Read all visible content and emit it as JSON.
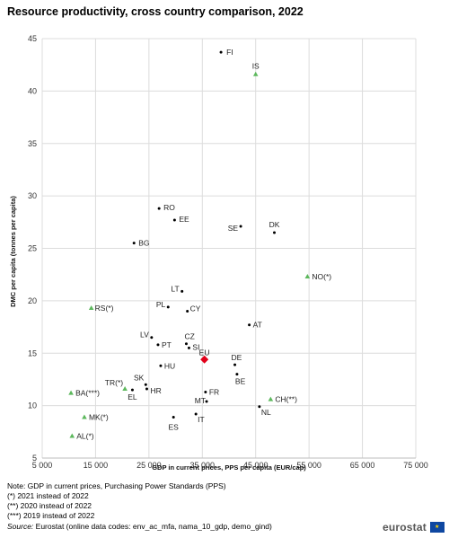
{
  "chart_data": {
    "type": "scatter",
    "title": "Resource productivity, cross country comparison, 2022",
    "xlabel": "GDP in current prices, PPS per capita (EUR/cap)",
    "ylabel": "DMC per capita (tonnes per capita)",
    "xlim": [
      5000,
      75000
    ],
    "ylim": [
      5,
      45
    ],
    "xticks": [
      5000,
      15000,
      25000,
      35000,
      45000,
      55000,
      65000,
      75000
    ],
    "xtick_labels": [
      "5 000",
      "15 000",
      "25 000",
      "35 000",
      "45 000",
      "55 000",
      "65 000",
      "75 000"
    ],
    "yticks": [
      5,
      10,
      15,
      20,
      25,
      30,
      35,
      40,
      45
    ],
    "grid": true,
    "colors": {
      "member": "#000000",
      "other": "#5cb85c",
      "eu": "#e2001a"
    },
    "points": [
      {
        "label": "FI",
        "x": 38500,
        "y": 43.7,
        "group": "member"
      },
      {
        "label": "IS",
        "x": 45000,
        "y": 41.6,
        "group": "other"
      },
      {
        "label": "RO",
        "x": 26900,
        "y": 28.8,
        "group": "member"
      },
      {
        "label": "EE",
        "x": 29800,
        "y": 27.7,
        "group": "member"
      },
      {
        "label": "SE",
        "x": 42200,
        "y": 27.1,
        "group": "member"
      },
      {
        "label": "DK",
        "x": 48500,
        "y": 26.5,
        "group": "member"
      },
      {
        "label": "BG",
        "x": 22200,
        "y": 25.5,
        "group": "member"
      },
      {
        "label": "NO(*)",
        "x": 54700,
        "y": 22.3,
        "group": "other"
      },
      {
        "label": "LT",
        "x": 31200,
        "y": 20.9,
        "group": "member"
      },
      {
        "label": "RS(*)",
        "x": 14200,
        "y": 19.3,
        "group": "other"
      },
      {
        "label": "PL",
        "x": 28600,
        "y": 19.4,
        "group": "member"
      },
      {
        "label": "CY",
        "x": 32200,
        "y": 19.0,
        "group": "member"
      },
      {
        "label": "AT",
        "x": 43800,
        "y": 17.7,
        "group": "member"
      },
      {
        "label": "LV",
        "x": 25500,
        "y": 16.5,
        "group": "member"
      },
      {
        "label": "CZ",
        "x": 32000,
        "y": 15.9,
        "group": "member"
      },
      {
        "label": "PT",
        "x": 26700,
        "y": 15.8,
        "group": "member"
      },
      {
        "label": "SI",
        "x": 32500,
        "y": 15.5,
        "group": "member"
      },
      {
        "label": "EU",
        "x": 35400,
        "y": 14.4,
        "group": "eu"
      },
      {
        "label": "DE",
        "x": 41100,
        "y": 13.9,
        "group": "member"
      },
      {
        "label": "HU",
        "x": 27200,
        "y": 13.8,
        "group": "member"
      },
      {
        "label": "BE",
        "x": 41500,
        "y": 13.0,
        "group": "member"
      },
      {
        "label": "SK",
        "x": 24400,
        "y": 12.0,
        "group": "member"
      },
      {
        "label": "TR(*)",
        "x": 20500,
        "y": 11.6,
        "group": "other"
      },
      {
        "label": "HR",
        "x": 24600,
        "y": 11.6,
        "group": "member"
      },
      {
        "label": "FR",
        "x": 35600,
        "y": 11.3,
        "group": "member"
      },
      {
        "label": "BA(***)",
        "x": 10400,
        "y": 11.2,
        "group": "other"
      },
      {
        "label": "EL",
        "x": 21900,
        "y": 11.5,
        "group": "member"
      },
      {
        "label": "CH(**)",
        "x": 47800,
        "y": 10.6,
        "group": "other"
      },
      {
        "label": "MT",
        "x": 35800,
        "y": 10.4,
        "group": "member"
      },
      {
        "label": "NL",
        "x": 45700,
        "y": 9.9,
        "group": "member"
      },
      {
        "label": "IT",
        "x": 33800,
        "y": 9.2,
        "group": "member"
      },
      {
        "label": "MK(*)",
        "x": 12900,
        "y": 8.9,
        "group": "other"
      },
      {
        "label": "ES",
        "x": 29600,
        "y": 8.9,
        "group": "member"
      },
      {
        "label": "AL(*)",
        "x": 10600,
        "y": 7.1,
        "group": "other"
      }
    ]
  },
  "notes": [
    "Note: GDP in current prices, Purchasing Power Standards (PPS)",
    "(*) 2021 instead of 2022",
    "(**) 2020 instead of 2022",
    "(***) 2019 instead of 2022"
  ],
  "source": {
    "prefix": "Source:",
    "text": " Eurostat (online data codes: env_ac_mfa, nama_10_gdp, demo_gind)"
  },
  "logo": {
    "text": "eurostat",
    "icon": "eu-flag-icon"
  }
}
